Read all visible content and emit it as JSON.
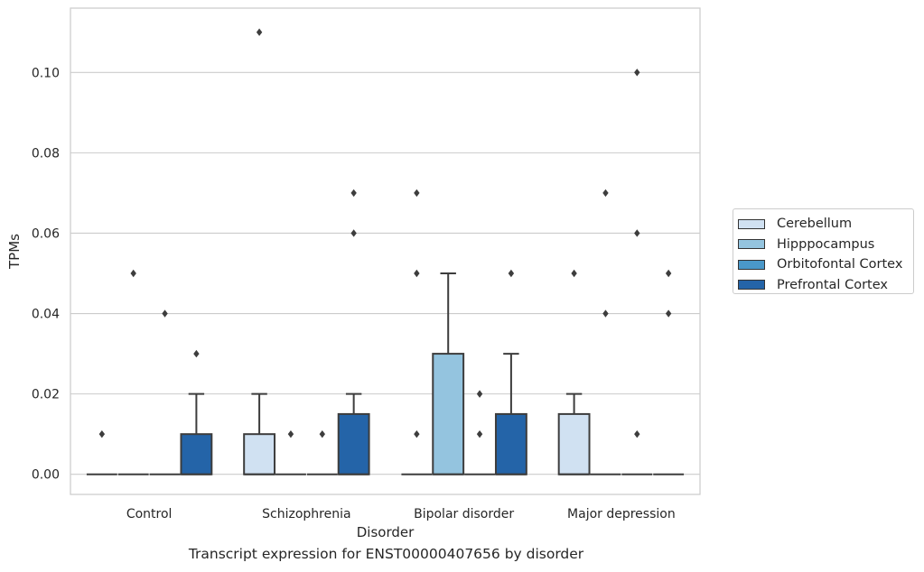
{
  "chart_data": {
    "type": "box",
    "title": "Transcript expression for ENST00000407656 by disorder",
    "xlabel": "Disorder",
    "ylabel": "TPMs",
    "ylim": [
      -0.005,
      0.116
    ],
    "yticks": [
      "0.00",
      "0.02",
      "0.04",
      "0.06",
      "0.08",
      "0.10"
    ],
    "categories": [
      "Control",
      "Schizophrenia",
      "Bipolar disorder",
      "Major depression"
    ],
    "grid": "horizontal",
    "legend_position": "right",
    "series": [
      {
        "name": "Cerebellum",
        "color": "#d0e1f2",
        "boxes": [
          {
            "q1": 0,
            "median": 0,
            "q3": 0,
            "whislo": 0,
            "whishi": 0,
            "fliers": [
              0.01
            ]
          },
          {
            "q1": 0,
            "median": 0,
            "q3": 0.01,
            "whislo": 0,
            "whishi": 0.02,
            "fliers": [
              0.11
            ]
          },
          {
            "q1": 0,
            "median": 0,
            "q3": 0,
            "whislo": 0,
            "whishi": 0,
            "fliers": [
              0.01,
              0.05,
              0.07
            ]
          },
          {
            "q1": 0,
            "median": 0,
            "q3": 0.015,
            "whislo": 0,
            "whishi": 0.02,
            "fliers": [
              0.05
            ]
          }
        ]
      },
      {
        "name": "Hipppocampus",
        "color": "#94c4df",
        "boxes": [
          {
            "q1": 0,
            "median": 0,
            "q3": 0,
            "whislo": 0,
            "whishi": 0,
            "fliers": [
              0.05
            ]
          },
          {
            "q1": 0,
            "median": 0,
            "q3": 0,
            "whislo": 0,
            "whishi": 0,
            "fliers": [
              0.01
            ]
          },
          {
            "q1": 0,
            "median": 0,
            "q3": 0.03,
            "whislo": 0,
            "whishi": 0.05,
            "fliers": []
          },
          {
            "q1": 0,
            "median": 0,
            "q3": 0,
            "whislo": 0,
            "whishi": 0,
            "fliers": [
              0.04,
              0.07
            ]
          }
        ]
      },
      {
        "name": "Orbitofontal Cortex",
        "color": "#4a98c9",
        "boxes": [
          {
            "q1": 0,
            "median": 0,
            "q3": 0,
            "whislo": 0,
            "whishi": 0,
            "fliers": [
              0.04
            ]
          },
          {
            "q1": 0,
            "median": 0,
            "q3": 0,
            "whislo": 0,
            "whishi": 0,
            "fliers": [
              0.01
            ]
          },
          {
            "q1": 0,
            "median": 0,
            "q3": 0,
            "whislo": 0,
            "whishi": 0,
            "fliers": [
              0.01,
              0.02
            ]
          },
          {
            "q1": 0,
            "median": 0,
            "q3": 0,
            "whislo": 0,
            "whishi": 0,
            "fliers": [
              0.01,
              0.06,
              0.1
            ]
          }
        ]
      },
      {
        "name": "Prefrontal Cortex",
        "color": "#2464a8",
        "boxes": [
          {
            "q1": 0,
            "median": 0,
            "q3": 0.01,
            "whislo": 0,
            "whishi": 0.02,
            "fliers": [
              0.03
            ]
          },
          {
            "q1": 0,
            "median": 0,
            "q3": 0.015,
            "whislo": 0,
            "whishi": 0.02,
            "fliers": [
              0.06,
              0.07
            ]
          },
          {
            "q1": 0,
            "median": 0,
            "q3": 0.015,
            "whislo": 0,
            "whishi": 0.03,
            "fliers": [
              0.05
            ]
          },
          {
            "q1": 0,
            "median": 0,
            "q3": 0,
            "whislo": 0,
            "whishi": 0,
            "fliers": [
              0.04,
              0.05
            ]
          }
        ]
      }
    ]
  }
}
